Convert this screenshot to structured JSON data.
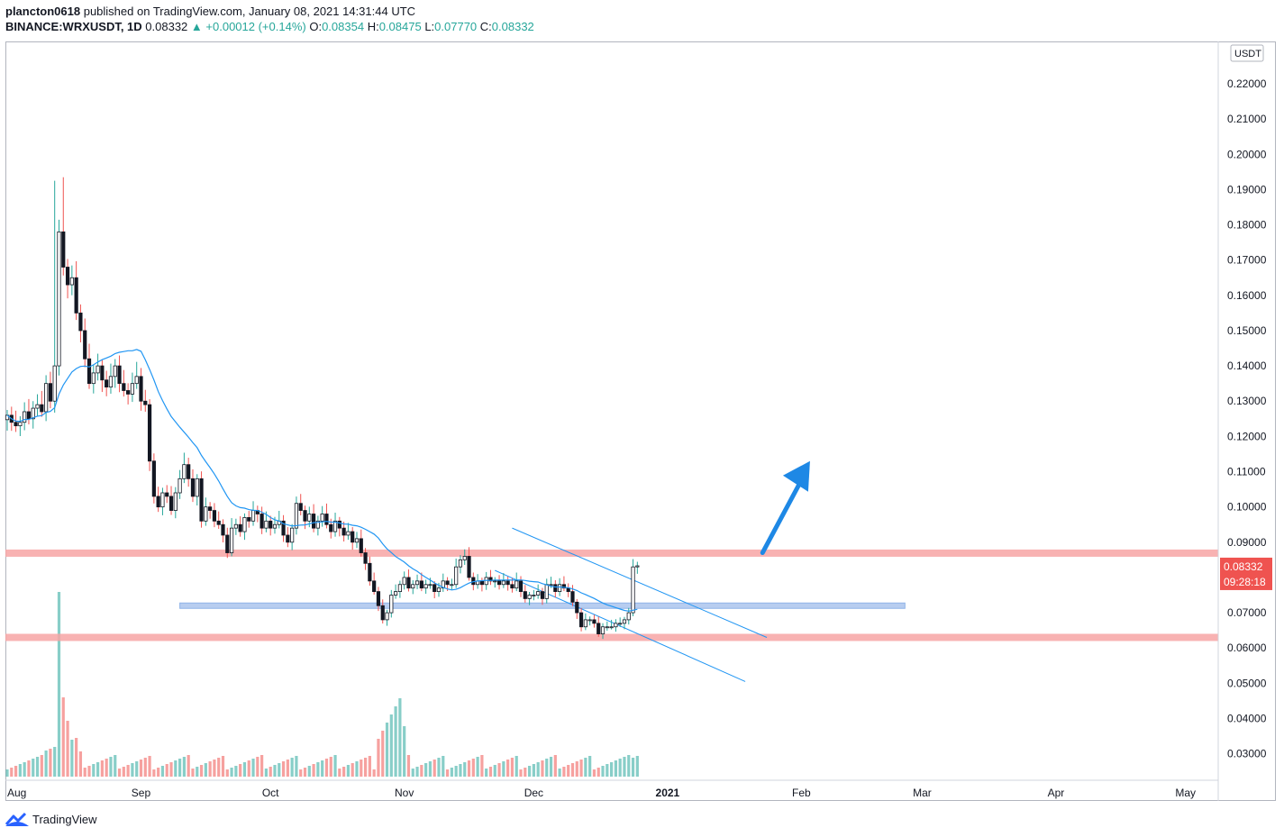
{
  "header": {
    "author": "plancton0618",
    "published": "published on TradingView.com, January 08, 2021 14:31:44 UTC",
    "symbol": "BINANCE:WRXUSDT, 1D",
    "last": "0.08332",
    "change": "▲ +0.00012 (+0.14%)",
    "o_label": "O:",
    "o": "0.08354",
    "h_label": "H:",
    "h": "0.08475",
    "l_label": "L:",
    "l": "0.07770",
    "c_label": "C:",
    "c": "0.08332"
  },
  "price_axis": {
    "currency": "USDT",
    "price_tag": "0.08332",
    "countdown": "09:28:18"
  },
  "footer": {
    "brand": "TradingView"
  },
  "colors": {
    "up": "#26a69a",
    "down": "#ef5350",
    "candle_body": "#131722",
    "ma": "#2196f3",
    "resistance": "#f7a5a5",
    "support_blue": "#b7cdf0",
    "arrow": "#1e88e5"
  },
  "chart_data": {
    "type": "candlestick",
    "title": "",
    "xlabel": "",
    "ylabel": "",
    "ylim": [
      0.0225,
      0.232
    ],
    "y_ticks": [
      "0.22000",
      "0.21000",
      "0.20000",
      "0.19000",
      "0.18000",
      "0.17000",
      "0.16000",
      "0.15000",
      "0.14000",
      "0.13000",
      "0.12000",
      "0.11000",
      "0.10000",
      "0.09000",
      "0.07000",
      "0.06000",
      "0.05000",
      "0.04000",
      "0.03000"
    ],
    "x_ticks": [
      {
        "label": "Aug",
        "date": "2020-08-01"
      },
      {
        "label": "Sep",
        "date": "2020-09-01"
      },
      {
        "label": "Oct",
        "date": "2020-10-01"
      },
      {
        "label": "Nov",
        "date": "2020-11-01"
      },
      {
        "label": "Dec",
        "date": "2020-12-01"
      },
      {
        "label": "2021",
        "date": "2021-01-01"
      },
      {
        "label": "Feb",
        "date": "2021-02-01"
      },
      {
        "label": "Mar",
        "date": "2021-03-01"
      },
      {
        "label": "Apr",
        "date": "2021-04-01"
      },
      {
        "label": "May",
        "date": "2021-05-01"
      }
    ],
    "start_date": "2020-08-01",
    "closes": [
      0.126,
      0.124,
      0.123,
      0.124,
      0.127,
      0.125,
      0.128,
      0.129,
      0.127,
      0.135,
      0.13,
      0.14,
      0.178,
      0.168,
      0.163,
      0.165,
      0.155,
      0.15,
      0.142,
      0.135,
      0.138,
      0.14,
      0.136,
      0.134,
      0.137,
      0.14,
      0.135,
      0.133,
      0.132,
      0.135,
      0.137,
      0.13,
      0.129,
      0.113,
      0.103,
      0.1,
      0.104,
      0.103,
      0.099,
      0.104,
      0.108,
      0.112,
      0.108,
      0.103,
      0.108,
      0.096,
      0.1,
      0.099,
      0.096,
      0.095,
      0.092,
      0.087,
      0.094,
      0.095,
      0.093,
      0.097,
      0.096,
      0.099,
      0.098,
      0.094,
      0.096,
      0.094,
      0.095,
      0.096,
      0.092,
      0.09,
      0.094,
      0.101,
      0.099,
      0.096,
      0.098,
      0.094,
      0.096,
      0.098,
      0.095,
      0.093,
      0.096,
      0.094,
      0.092,
      0.093,
      0.09,
      0.091,
      0.087,
      0.084,
      0.079,
      0.076,
      0.072,
      0.068,
      0.07,
      0.075,
      0.076,
      0.078,
      0.08,
      0.077,
      0.078,
      0.079,
      0.077,
      0.078,
      0.078,
      0.076,
      0.077,
      0.079,
      0.078,
      0.078,
      0.083,
      0.085,
      0.086,
      0.08,
      0.078,
      0.079,
      0.078,
      0.08,
      0.079,
      0.079,
      0.078,
      0.079,
      0.078,
      0.077,
      0.079,
      0.076,
      0.074,
      0.075,
      0.075,
      0.076,
      0.074,
      0.078,
      0.078,
      0.076,
      0.078,
      0.077,
      0.076,
      0.073,
      0.07,
      0.066,
      0.068,
      0.068,
      0.067,
      0.064,
      0.066,
      0.066,
      0.066,
      0.067,
      0.067,
      0.068,
      0.07,
      0.083,
      0.0833
    ],
    "resistance_line": 0.0869,
    "support_line_upper": 0.072,
    "support_line_lower": 0.063,
    "ma_label": "moving average",
    "last_price": 0.08332
  }
}
